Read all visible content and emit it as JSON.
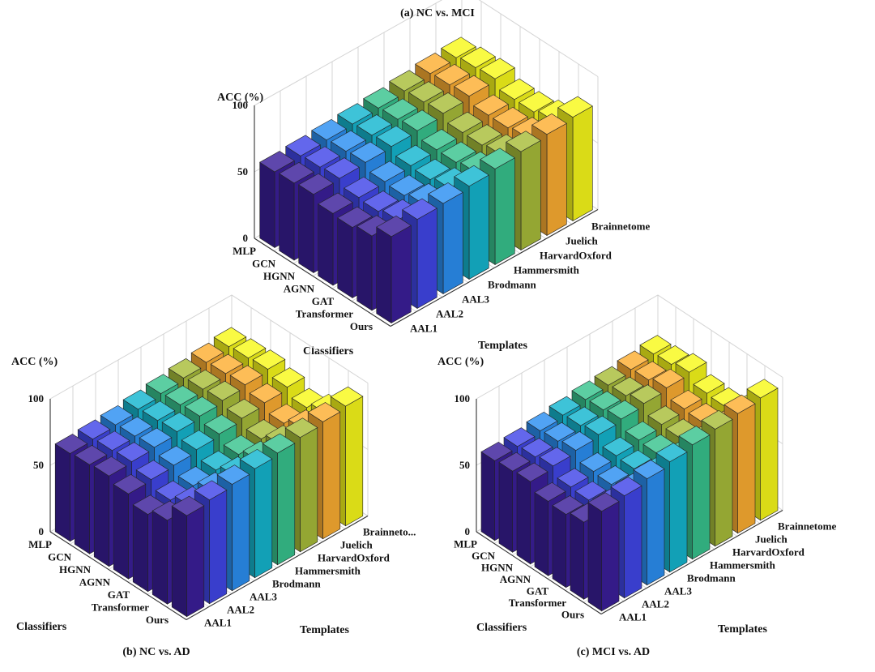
{
  "colors": {
    "background": "#ffffff",
    "axis": "#333333",
    "grid": "#d4d4d4",
    "template_colors": [
      "#3b1f9a",
      "#4146e8",
      "#2b8ff2",
      "#14b6cf",
      "#38c38e",
      "#a8bd3a",
      "#fcae32",
      "#f8f91a"
    ]
  },
  "chart_data": [
    {
      "type": "bar3d",
      "title": "(a) NC vs. MCI",
      "zlabel": "ACC (%)",
      "xlabel": "Classifiers",
      "ylabel": "Templates",
      "zlim": [
        0,
        100
      ],
      "zticks": [
        "0",
        "50",
        "100"
      ],
      "classifiers": [
        "MLP",
        "GCN",
        "HGNN",
        "AGNN",
        "GAT",
        "Transformer",
        "Ours"
      ],
      "templates": [
        "AAL1",
        "AAL2",
        "AAL3",
        "Brodmann",
        "Hammersmith",
        "HarvardOxford",
        "Juelich",
        "Brainnetome"
      ],
      "values": [
        [
          57,
          58,
          59,
          60,
          61,
          63,
          65,
          66
        ],
        [
          58,
          59,
          60,
          61,
          62,
          64,
          66,
          68
        ],
        [
          59,
          60,
          61,
          62,
          63,
          65,
          67,
          69
        ],
        [
          54,
          55,
          56,
          57,
          58,
          60,
          62,
          63
        ],
        [
          53,
          54,
          55,
          56,
          58,
          60,
          62,
          63
        ],
        [
          56,
          57,
          58,
          59,
          60,
          62,
          64,
          66
        ],
        [
          65,
          67,
          68,
          70,
          72,
          74,
          76,
          78
        ]
      ]
    },
    {
      "type": "bar3d",
      "title": "(b) NC vs. AD",
      "zlabel": "ACC (%)",
      "xlabel": "Classifiers",
      "ylabel": "Templates",
      "zlim": [
        0,
        100
      ],
      "zticks": [
        "0",
        "50",
        "100"
      ],
      "classifiers": [
        "MLP",
        "GCN",
        "HGNN",
        "AGNN",
        "GAT",
        "Transformer",
        "Ours"
      ],
      "templates": [
        "AAL1",
        "AAL2",
        "AAL3",
        "Brodmann",
        "Hammersmith",
        "HarvardOxford",
        "Juelich",
        "Brainneto..."
      ],
      "values": [
        [
          66,
          67,
          68,
          70,
          72,
          74,
          76,
          78
        ],
        [
          67,
          68,
          69,
          71,
          73,
          75,
          77,
          79
        ],
        [
          68,
          69,
          70,
          72,
          74,
          76,
          78,
          80
        ],
        [
          64,
          65,
          66,
          68,
          70,
          72,
          74,
          76
        ],
        [
          58,
          59,
          60,
          62,
          64,
          66,
          68,
          70
        ],
        [
          63,
          64,
          65,
          67,
          69,
          71,
          73,
          75
        ],
        [
          76,
          78,
          80,
          82,
          84,
          86,
          88,
          90
        ]
      ]
    },
    {
      "type": "bar3d",
      "title": "(c) MCI vs. AD",
      "zlabel": "ACC (%)",
      "xlabel": "Classifiers",
      "ylabel": "Templates",
      "zlim": [
        0,
        100
      ],
      "zticks": [
        "0",
        "50",
        "100"
      ],
      "classifiers": [
        "MLP",
        "GCN",
        "HGNN",
        "AGNN",
        "GAT",
        "Transformer",
        "Ours"
      ],
      "templates": [
        "AAL1",
        "AAL2",
        "AAL3",
        "Brodmann",
        "Hammersmith",
        "HarvardOxford",
        "Juelich",
        "Brainnetome"
      ],
      "values": [
        [
          60,
          61,
          63,
          65,
          67,
          68,
          70,
          72
        ],
        [
          61,
          62,
          64,
          66,
          68,
          69,
          71,
          73
        ],
        [
          62,
          64,
          66,
          68,
          70,
          72,
          74,
          76
        ],
        [
          56,
          57,
          59,
          61,
          63,
          65,
          67,
          69
        ],
        [
          55,
          56,
          58,
          60,
          62,
          64,
          66,
          68
        ],
        [
          58,
          59,
          61,
          63,
          65,
          67,
          69,
          71
        ],
        [
          75,
          77,
          80,
          83,
          86,
          88,
          90,
          92
        ]
      ]
    }
  ]
}
